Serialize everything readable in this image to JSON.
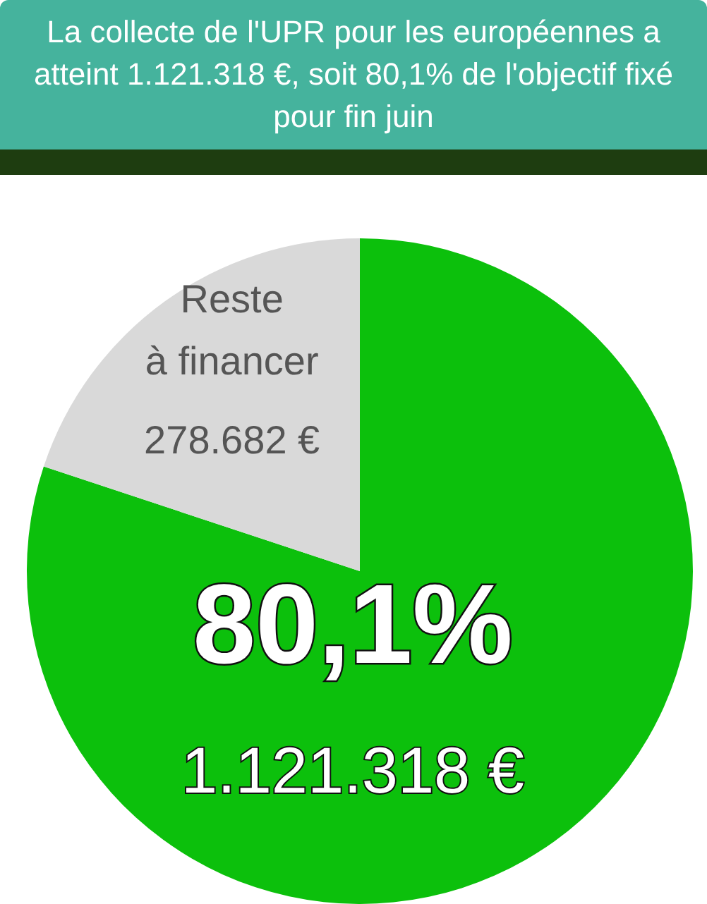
{
  "chart_data": {
    "type": "pie",
    "title": "La collecte de l'UPR pour les européennes a atteint 1.121.318 €, soit 80,1% de l'objectif fixé pour fin juin",
    "categories": [
      null,
      "Reste à financer"
    ],
    "values": [
      1121318,
      278682
    ],
    "colors": [
      "#0cc00c",
      "#d9d9d9"
    ],
    "value_labels": [
      "1.121.318 €",
      "278.682 €"
    ],
    "annotations": [
      "80,1%"
    ]
  }
}
